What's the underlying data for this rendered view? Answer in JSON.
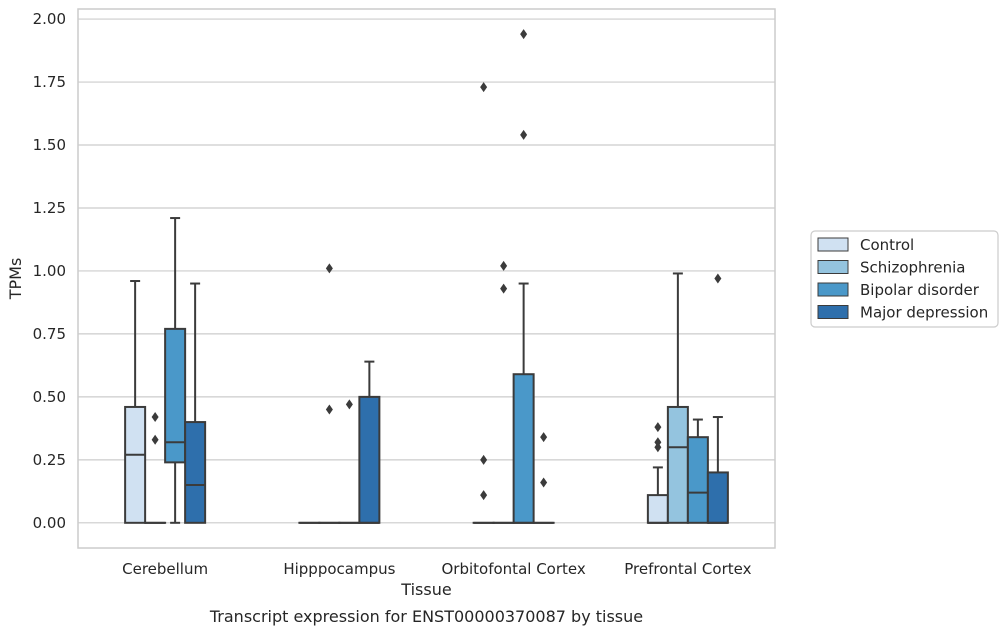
{
  "caption": "Transcript expression for ENST00000370087 by tissue",
  "chart_data": {
    "type": "box",
    "xlabel": "Tissue",
    "ylabel": "TPMs",
    "ylim": [
      -0.1,
      2.04
    ],
    "yticks": [
      0.0,
      0.25,
      0.5,
      0.75,
      1.0,
      1.25,
      1.5,
      1.75,
      2.0
    ],
    "ytick_labels": [
      "0.00",
      "0.25",
      "0.50",
      "0.75",
      "1.00",
      "1.25",
      "1.50",
      "1.75",
      "2.00"
    ],
    "grid": "horizontal",
    "legend_position": "right",
    "categories": [
      "Cerebellum",
      "Hipppocampus",
      "Orbitofontal Cortex",
      "Prefrontal Cortex"
    ],
    "series": [
      {
        "name": "Control",
        "color": "#d0e1f2",
        "boxes": [
          {
            "whislo": 0.0,
            "q1": 0.0,
            "med": 0.27,
            "q3": 0.46,
            "whishi": 0.96,
            "fliers": []
          },
          {
            "whislo": 0.0,
            "q1": 0.0,
            "med": 0.0,
            "q3": 0.0,
            "whishi": 0.0,
            "fliers": []
          },
          {
            "whislo": 0.0,
            "q1": 0.0,
            "med": 0.0,
            "q3": 0.0,
            "whishi": 0.0,
            "fliers": [
              0.11,
              0.25,
              1.73
            ]
          },
          {
            "whislo": 0.0,
            "q1": 0.0,
            "med": 0.0,
            "q3": 0.11,
            "whishi": 0.22,
            "fliers": [
              0.3,
              0.32,
              0.38
            ]
          }
        ]
      },
      {
        "name": "Schizophrenia",
        "color": "#94c4df",
        "boxes": [
          {
            "whislo": 0.0,
            "q1": 0.0,
            "med": 0.0,
            "q3": 0.0,
            "whishi": 0.0,
            "fliers": [
              0.33,
              0.42
            ]
          },
          {
            "whislo": 0.0,
            "q1": 0.0,
            "med": 0.0,
            "q3": 0.0,
            "whishi": 0.0,
            "fliers": [
              0.45,
              1.01
            ]
          },
          {
            "whislo": 0.0,
            "q1": 0.0,
            "med": 0.0,
            "q3": 0.0,
            "whishi": 0.0,
            "fliers": [
              0.93,
              1.02
            ]
          },
          {
            "whislo": 0.0,
            "q1": 0.0,
            "med": 0.3,
            "q3": 0.46,
            "whishi": 0.99,
            "fliers": []
          }
        ]
      },
      {
        "name": "Bipolar disorder",
        "color": "#4a98c9",
        "boxes": [
          {
            "whislo": 0.0,
            "q1": 0.24,
            "med": 0.32,
            "q3": 0.77,
            "whishi": 1.21,
            "fliers": []
          },
          {
            "whislo": 0.0,
            "q1": 0.0,
            "med": 0.0,
            "q3": 0.0,
            "whishi": 0.0,
            "fliers": [
              0.47
            ]
          },
          {
            "whislo": 0.0,
            "q1": 0.0,
            "med": 0.0,
            "q3": 0.59,
            "whishi": 0.95,
            "fliers": [
              1.54,
              1.94
            ]
          },
          {
            "whislo": 0.0,
            "q1": 0.0,
            "med": 0.12,
            "q3": 0.34,
            "whishi": 0.41,
            "fliers": []
          }
        ]
      },
      {
        "name": "Major depression",
        "color": "#2e6fac",
        "boxes": [
          {
            "whislo": 0.0,
            "q1": 0.0,
            "med": 0.15,
            "q3": 0.4,
            "whishi": 0.95,
            "fliers": []
          },
          {
            "whislo": 0.0,
            "q1": 0.0,
            "med": 0.0,
            "q3": 0.5,
            "whishi": 0.64,
            "fliers": []
          },
          {
            "whislo": 0.0,
            "q1": 0.0,
            "med": 0.0,
            "q3": 0.0,
            "whishi": 0.0,
            "fliers": [
              0.16,
              0.34
            ]
          },
          {
            "whislo": 0.0,
            "q1": 0.0,
            "med": 0.0,
            "q3": 0.2,
            "whishi": 0.42,
            "fliers": [
              0.97
            ]
          }
        ]
      }
    ]
  }
}
